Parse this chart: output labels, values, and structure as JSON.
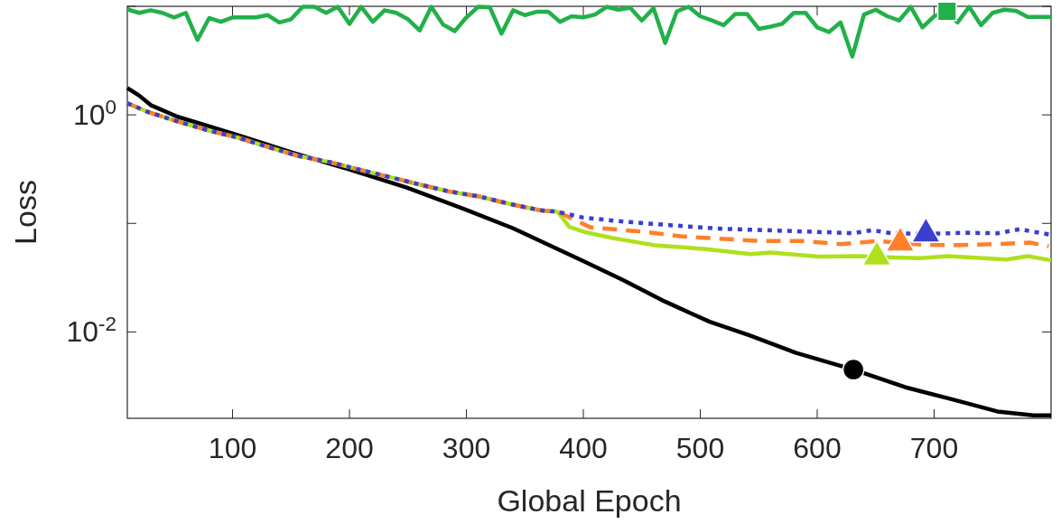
{
  "chart_data": {
    "type": "line",
    "xlabel": "Global Epoch",
    "ylabel": "Loss",
    "log": "y",
    "xlim": [
      10,
      800
    ],
    "ylim": [
      0.0016,
      10
    ],
    "xticks": [
      100,
      200,
      300,
      400,
      500,
      600,
      700
    ],
    "yticks": [
      {
        "value": 0.01,
        "label": "10$^{-2}$"
      },
      {
        "value": 0.1,
        "label": null
      },
      {
        "value": 1,
        "label": "10$^{0}$"
      },
      {
        "value": 10,
        "label": null
      }
    ],
    "series": [
      {
        "color": "#22b04a",
        "line_style": "solid",
        "x": [
          10,
          20,
          30,
          40,
          50,
          60,
          70,
          80,
          90,
          100,
          110,
          120,
          130,
          140,
          150,
          160,
          170,
          180,
          190,
          200,
          210,
          220,
          230,
          240,
          250,
          260,
          270,
          280,
          290,
          300,
          310,
          320,
          330,
          340,
          350,
          360,
          370,
          380,
          390,
          400,
          410,
          420,
          430,
          440,
          450,
          460,
          470,
          480,
          490,
          500,
          510,
          520,
          530,
          540,
          550,
          560,
          570,
          580,
          590,
          600,
          610,
          620,
          630,
          640,
          650,
          660,
          670,
          680,
          690,
          700,
          710,
          720,
          730,
          740,
          750,
          760,
          770,
          780,
          790,
          800
        ],
        "values": [
          9.4,
          8.7,
          9.2,
          8.7,
          7.9,
          8.7,
          4.9,
          7.8,
          7.2,
          7.9,
          7.9,
          7.9,
          8.3,
          7.1,
          7.6,
          9.9,
          9.9,
          8.7,
          9.9,
          6.9,
          9.9,
          7.2,
          9.2,
          8.7,
          7.6,
          6.0,
          9.9,
          6.8,
          5.9,
          7.9,
          9.9,
          9.8,
          5.6,
          9.2,
          8.3,
          8.9,
          8.9,
          7.2,
          8.1,
          7.9,
          8.4,
          9.9,
          9.3,
          9.7,
          7.4,
          9.6,
          4.6,
          9.0,
          9.9,
          8.1,
          7.4,
          6.7,
          8.5,
          8.5,
          6.2,
          6.5,
          6.9,
          8.7,
          8.7,
          6.4,
          5.8,
          7.1,
          3.45,
          8.4,
          9.3,
          8.1,
          7.4,
          9.9,
          6.4,
          8.1,
          9.0,
          7.1,
          9.9,
          6.7,
          8.7,
          9.3,
          9.1,
          8.0,
          8.0,
          8.0
        ]
      },
      {
        "color": "#000000",
        "line_style": "solid",
        "x": [
          10,
          20,
          30,
          53,
          79,
          115,
          151,
          200,
          249,
          300,
          340,
          400,
          434,
          470,
          508,
          542,
          582,
          631,
          675,
          715,
          754,
          785,
          800
        ],
        "values": [
          1.77,
          1.51,
          1.23,
          0.96,
          0.79,
          0.6,
          0.45,
          0.314,
          0.214,
          0.133,
          0.09,
          0.045,
          0.03,
          0.019,
          0.0124,
          0.0093,
          0.0064,
          0.0045,
          0.0031,
          0.0024,
          0.00185,
          0.0017,
          0.0017
        ]
      },
      {
        "color": "#aee01e",
        "line_style": "solid",
        "x": [
          10,
          28,
          53,
          79,
          105,
          136,
          156,
          182,
          208,
          234,
          260,
          285,
          311,
          337,
          363,
          378,
          388,
          400,
          424,
          463,
          503,
          543,
          560,
          601,
          636,
          651,
          688,
          712,
          762,
          780,
          800
        ],
        "values": [
          1.28,
          1.06,
          0.87,
          0.72,
          0.615,
          0.485,
          0.419,
          0.369,
          0.314,
          0.268,
          0.228,
          0.197,
          0.177,
          0.151,
          0.132,
          0.128,
          0.093,
          0.0838,
          0.0736,
          0.0624,
          0.0583,
          0.0522,
          0.054,
          0.0495,
          0.05,
          0.049,
          0.0479,
          0.05,
          0.0464,
          0.05,
          0.0457
        ]
      },
      {
        "color": "#ff7f2a",
        "line_style": "dashed",
        "x": [
          10,
          28,
          53,
          79,
          105,
          136,
          156,
          182,
          208,
          234,
          260,
          285,
          311,
          337,
          363,
          378,
          406,
          451,
          483,
          517,
          552,
          586,
          620,
          652,
          671,
          690,
          722,
          753,
          782,
          798
        ],
        "values": [
          1.28,
          1.06,
          0.87,
          0.72,
          0.615,
          0.485,
          0.419,
          0.369,
          0.314,
          0.268,
          0.228,
          0.197,
          0.177,
          0.151,
          0.132,
          0.128,
          0.092,
          0.0838,
          0.076,
          0.0722,
          0.0688,
          0.0688,
          0.0645,
          0.0688,
          0.066,
          0.0636,
          0.063,
          0.0645,
          0.0665,
          0.0615
        ]
      },
      {
        "color": "#3b3fcf",
        "line_style": "dotted",
        "x": [
          10,
          28,
          53,
          79,
          105,
          136,
          156,
          182,
          208,
          234,
          260,
          285,
          311,
          337,
          363,
          378,
          400,
          436,
          476,
          515,
          555,
          595,
          631,
          647,
          664,
          693,
          728,
          754,
          773,
          800
        ],
        "values": [
          1.28,
          1.06,
          0.87,
          0.72,
          0.615,
          0.485,
          0.419,
          0.369,
          0.314,
          0.268,
          0.228,
          0.197,
          0.177,
          0.151,
          0.132,
          0.128,
          0.113,
          0.1035,
          0.096,
          0.0895,
          0.0866,
          0.0838,
          0.0811,
          0.0866,
          0.0811,
          0.08,
          0.082,
          0.081,
          0.0883,
          0.0785
        ]
      },
      {
        "type": "scatter",
        "color": "#22b04a",
        "marker": "square",
        "x": [
          711
        ],
        "values": [
          9.0
        ]
      },
      {
        "type": "scatter",
        "color": "#000000",
        "marker": "circle",
        "x": [
          631
        ],
        "values": [
          0.0045
        ]
      },
      {
        "type": "scatter",
        "color": "#aee01e",
        "marker": "triangle",
        "x": [
          651
        ],
        "values": [
          0.049
        ]
      },
      {
        "type": "scatter",
        "color": "#ff7f2a",
        "marker": "triangle",
        "x": [
          671
        ],
        "values": [
          0.066
        ]
      },
      {
        "type": "scatter",
        "color": "#3b3fcf",
        "marker": "triangle",
        "x": [
          693
        ],
        "values": [
          0.08
        ]
      }
    ]
  }
}
